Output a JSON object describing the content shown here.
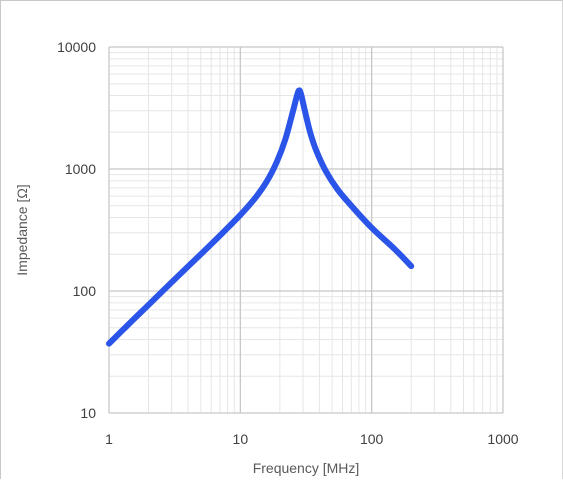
{
  "chart_data": {
    "type": "line",
    "title": "",
    "xlabel": "Frequency [MHz]",
    "ylabel": "Impedance  [Ω]",
    "xscale": "log",
    "yscale": "log",
    "xlim": [
      1,
      1000
    ],
    "ylim": [
      10,
      10000
    ],
    "x_ticks": [
      "1",
      "10",
      "100",
      "1000"
    ],
    "y_ticks": [
      "10",
      "100",
      "1000",
      "10000"
    ],
    "grid": true,
    "legend": "none",
    "series": [
      {
        "color": "#2b54e8",
        "x": [
          1,
          1.5,
          2,
          3,
          5,
          7,
          10,
          13,
          16,
          19,
          22,
          25,
          27,
          28,
          29,
          31,
          34,
          38,
          45,
          55,
          70,
          100,
          150,
          200
        ],
        "y": [
          37,
          57,
          77,
          118,
          200,
          285,
          420,
          580,
          800,
          1150,
          1750,
          2900,
          4000,
          4400,
          4100,
          3000,
          2000,
          1400,
          950,
          680,
          500,
          330,
          220,
          160
        ]
      }
    ]
  }
}
